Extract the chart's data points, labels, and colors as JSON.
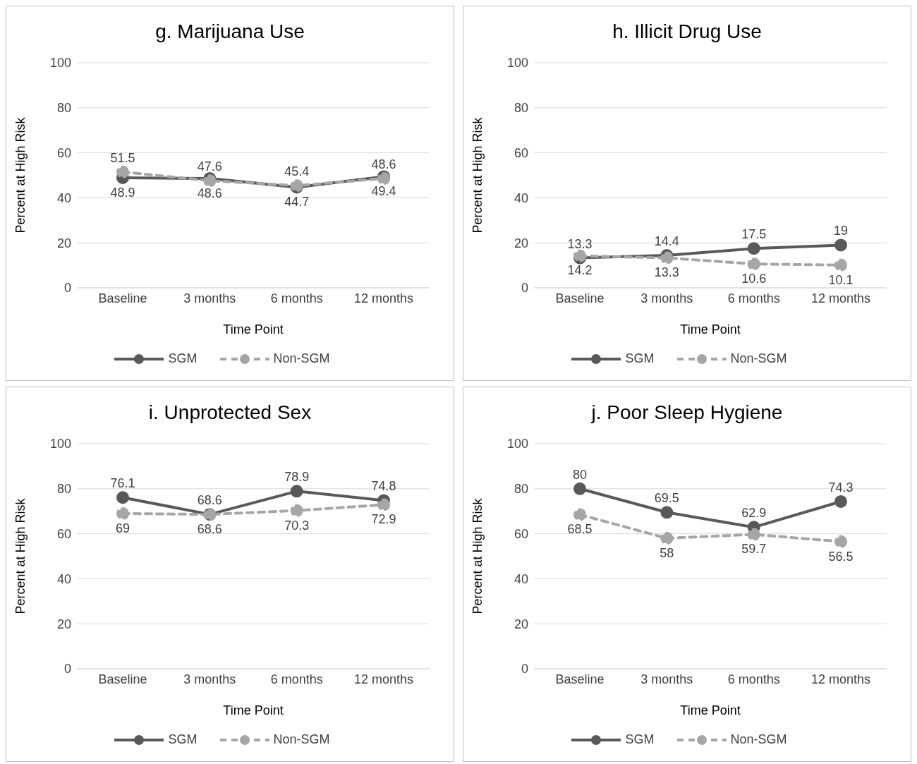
{
  "chart_data": [
    {
      "type": "line",
      "title": "g. Marijuana Use",
      "xlabel": "Time Point",
      "ylabel": "Percent at High Risk",
      "categories": [
        "Baseline",
        "3 months",
        "6 months",
        "12 months"
      ],
      "series": [
        {
          "name": "SGM",
          "color": "#595959",
          "line_style": "solid",
          "values": [
            48.9,
            48.6,
            44.7,
            49.4
          ]
        },
        {
          "name": "Non-SGM",
          "color": "#a6a6a6",
          "line_style": "dashed",
          "values": [
            51.5,
            47.6,
            45.4,
            48.6
          ]
        }
      ],
      "ylim": [
        0,
        100
      ],
      "yticks": [
        0,
        20,
        40,
        60,
        80,
        100
      ],
      "grid": "y",
      "legend": "bottom",
      "marker": "circle",
      "data_labels": true
    },
    {
      "type": "line",
      "title": "h. Illicit Drug Use",
      "xlabel": "Time Point",
      "ylabel": "Percent at High Risk",
      "categories": [
        "Baseline",
        "3 months",
        "6 months",
        "12 months"
      ],
      "series": [
        {
          "name": "SGM",
          "color": "#595959",
          "line_style": "solid",
          "values": [
            13.3,
            14.4,
            17.5,
            19
          ]
        },
        {
          "name": "Non-SGM",
          "color": "#a6a6a6",
          "line_style": "dashed",
          "values": [
            14.2,
            13.3,
            10.6,
            10.1
          ]
        }
      ],
      "ylim": [
        0,
        100
      ],
      "yticks": [
        0,
        20,
        40,
        60,
        80,
        100
      ],
      "grid": "y",
      "legend": "bottom",
      "marker": "circle",
      "data_labels": true
    },
    {
      "type": "line",
      "title": "i. Unprotected Sex",
      "xlabel": "Time Point",
      "ylabel": "Percent at High Risk",
      "categories": [
        "Baseline",
        "3 months",
        "6 months",
        "12 months"
      ],
      "series": [
        {
          "name": "SGM",
          "color": "#595959",
          "line_style": "solid",
          "values": [
            76.1,
            68.6,
            78.9,
            74.8
          ]
        },
        {
          "name": "Non-SGM",
          "color": "#a6a6a6",
          "line_style": "dashed",
          "values": [
            69,
            68.6,
            70.3,
            72.9
          ]
        }
      ],
      "ylim": [
        0,
        100
      ],
      "yticks": [
        0,
        20,
        40,
        60,
        80,
        100
      ],
      "grid": "y",
      "legend": "bottom",
      "marker": "circle",
      "data_labels": true
    },
    {
      "type": "line",
      "title": "j. Poor Sleep Hygiene",
      "xlabel": "Time Point",
      "ylabel": "Percent at High Risk",
      "categories": [
        "Baseline",
        "3 months",
        "6 months",
        "12 months"
      ],
      "series": [
        {
          "name": "SGM",
          "color": "#595959",
          "line_style": "solid",
          "values": [
            80,
            69.5,
            62.9,
            74.3
          ]
        },
        {
          "name": "Non-SGM",
          "color": "#a6a6a6",
          "line_style": "dashed",
          "values": [
            68.5,
            58,
            59.7,
            56.5
          ]
        }
      ],
      "ylim": [
        0,
        100
      ],
      "yticks": [
        0,
        20,
        40,
        60,
        80,
        100
      ],
      "grid": "y",
      "legend": "bottom",
      "marker": "circle",
      "data_labels": true
    }
  ]
}
